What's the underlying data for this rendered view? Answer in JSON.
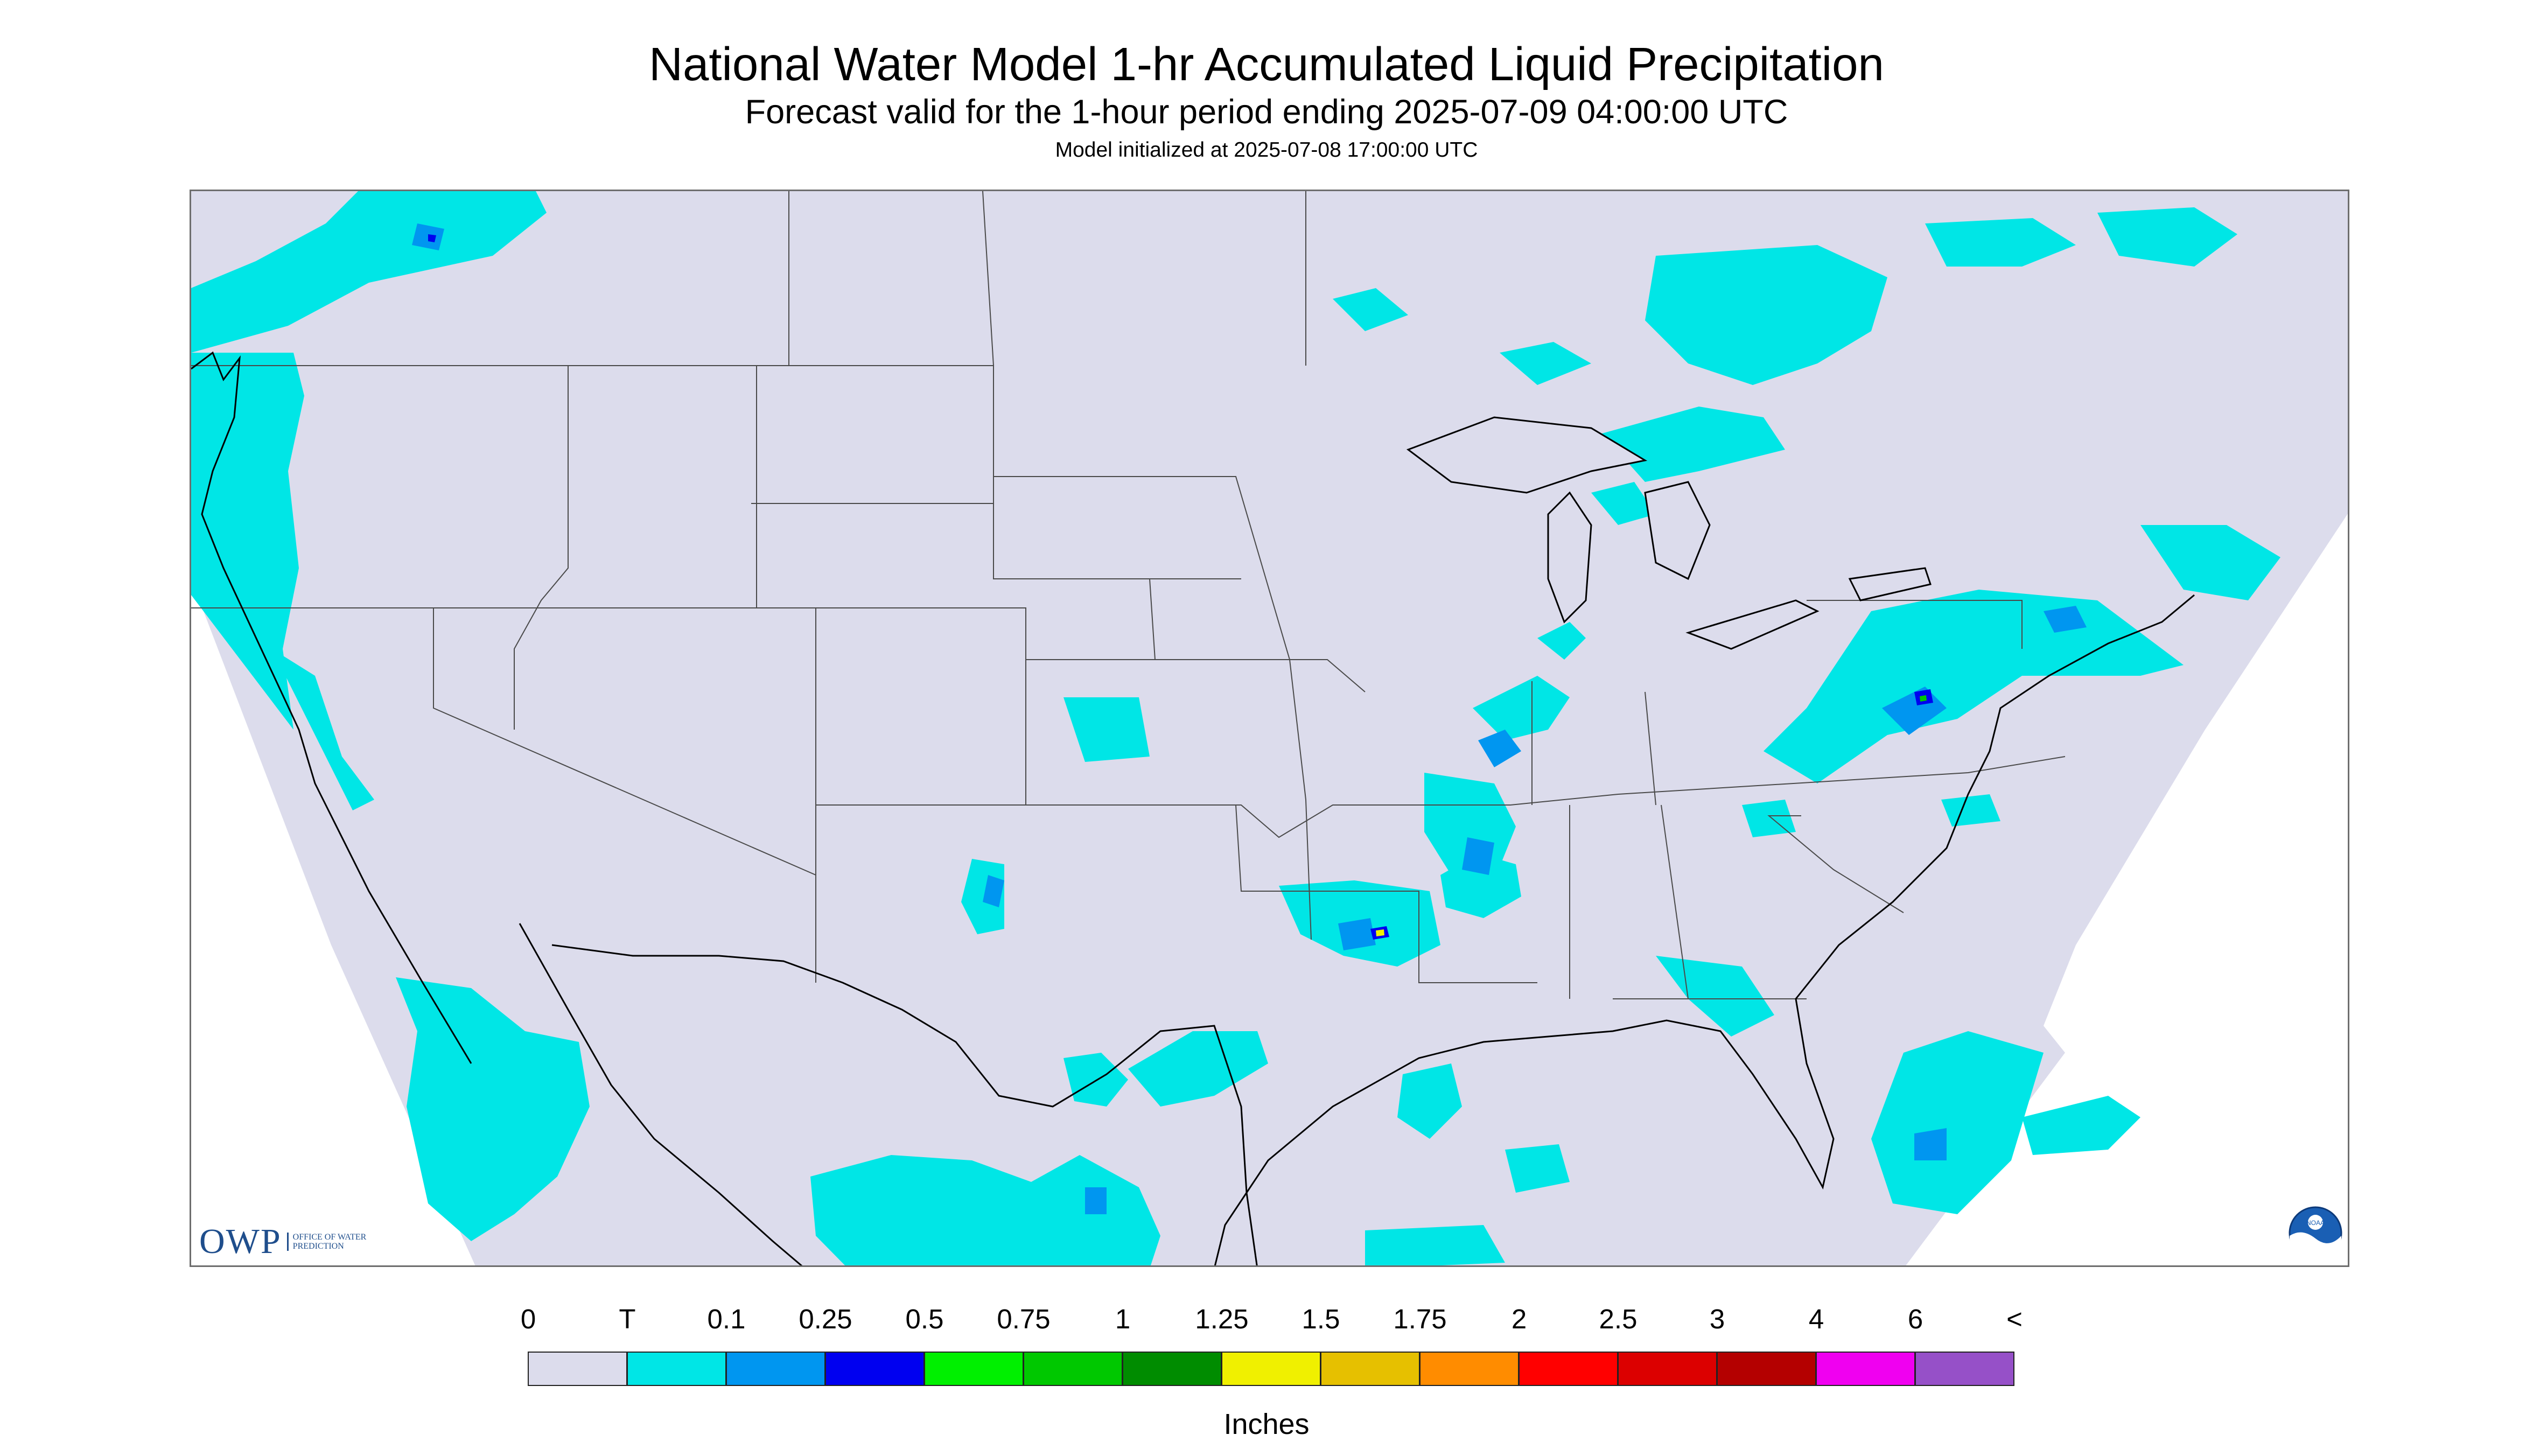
{
  "header": {
    "title": "National Water Model 1-hr Accumulated Liquid Precipitation",
    "subtitle": "Forecast valid for the 1-hour period ending 2025-07-09 04:00:00 UTC",
    "init_line": "Model initialized at 2025-07-08 17:00:00 UTC"
  },
  "map": {
    "region": "CONUS",
    "background_color": "#dcdcec",
    "outside_domain_color": "#ffffff",
    "boundary_color": "#4a4a4a",
    "coastline_color": "#000000"
  },
  "legend": {
    "units_label": "Inches",
    "labels": [
      "0",
      "T",
      "0.1",
      "0.25",
      "0.5",
      "0.75",
      "1",
      "1.25",
      "1.5",
      "1.75",
      "2",
      "2.5",
      "3",
      "4",
      "6",
      "<"
    ],
    "colors": [
      "#dcdcec",
      "#00e6e6",
      "#0096f0",
      "#0000f0",
      "#00f000",
      "#00c800",
      "#008c00",
      "#f0f000",
      "#e6c000",
      "#ff8c00",
      "#ff0000",
      "#dc0000",
      "#b40000",
      "#f000f0",
      "#9650c8"
    ]
  },
  "logos": {
    "owp_mark": "OWP",
    "owp_text": "OFFICE OF WATER PREDICTION",
    "noaa_text": "NOAA"
  }
}
